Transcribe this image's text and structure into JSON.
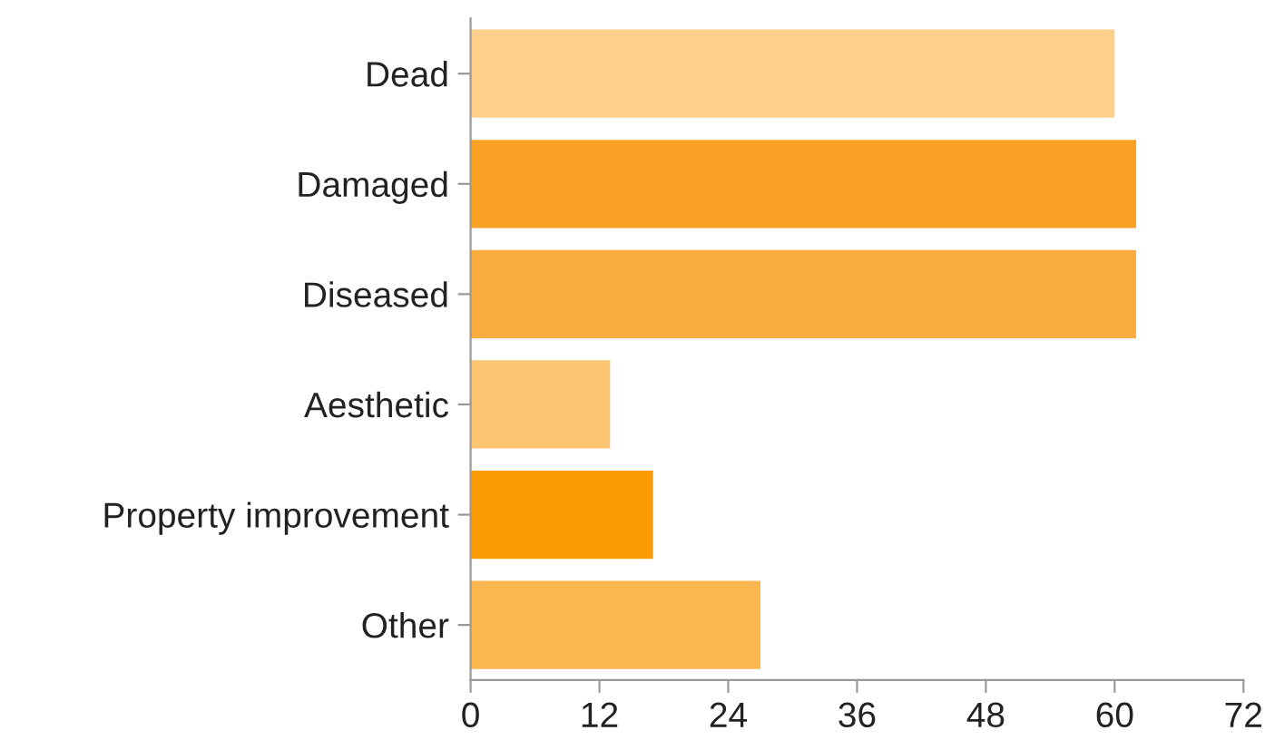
{
  "chart_data": {
    "type": "bar",
    "orientation": "horizontal",
    "categories": [
      "Dead",
      "Damaged",
      "Diseased",
      "Aesthetic",
      "Property improvement",
      "Other"
    ],
    "values": [
      60,
      62,
      62,
      13,
      17,
      27
    ],
    "colors": [
      "#fdd08c",
      "#f9a124",
      "#fbac3e",
      "#fdc472",
      "#fb9a02",
      "#fcb650"
    ],
    "xlim": [
      0,
      72
    ],
    "xticks": [
      0,
      12,
      24,
      36,
      48,
      60,
      72
    ],
    "grid": false
  }
}
